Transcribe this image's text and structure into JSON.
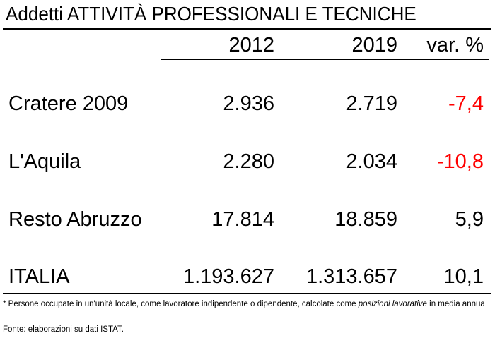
{
  "title": "Addetti ATTIVITÀ PROFESSIONALI E TECNICHE",
  "columns": {
    "y2012": "2012",
    "y2019": "2019",
    "var": "var. %"
  },
  "rows": [
    {
      "label": "Cratere 2009",
      "v2012": "2.936",
      "v2019": "2.719",
      "var": "-7,4",
      "negative": true
    },
    {
      "label": "L'Aquila",
      "v2012": "2.280",
      "v2019": "2.034",
      "var": "-10,8",
      "negative": true
    },
    {
      "label": "Resto Abruzzo",
      "v2012": "17.814",
      "v2019": "18.859",
      "var": "5,9",
      "negative": false
    },
    {
      "label": "ITALIA",
      "v2012": "1.193.627",
      "v2019": "1.313.657",
      "var": "10,1",
      "negative": false
    }
  ],
  "footnote": {
    "part1": "* Persone occupate in un'unità locale, come lavoratore indipendente o dipendente, calcolate come ",
    "emphasis": "posizioni lavorative",
    "part2": " in media annua"
  },
  "source": "Fonte: elaborazioni su dati ISTAT.",
  "colors": {
    "text": "#000000",
    "negative": "#ff0000",
    "background": "#ffffff"
  }
}
